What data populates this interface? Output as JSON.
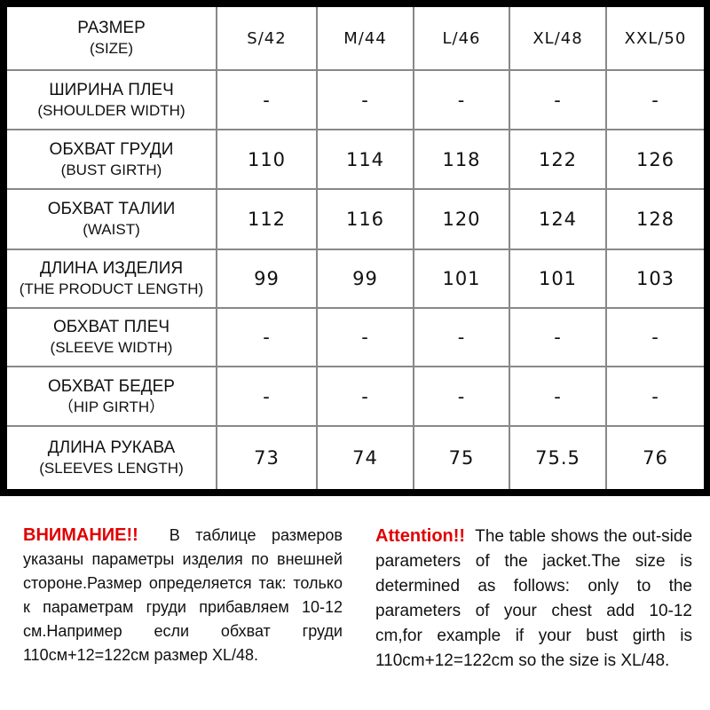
{
  "table": {
    "header": {
      "ru": "РАЗМЕР",
      "en": "(SIZE)",
      "sizes": [
        "S/42",
        "M/44",
        "L/46",
        "XL/48",
        "XXL/50"
      ]
    },
    "rows": [
      {
        "ru": "ШИРИНА ПЛЕЧ",
        "en": "(SHOULDER WIDTH)",
        "values": [
          "-",
          "-",
          "-",
          "-",
          "-"
        ]
      },
      {
        "ru": "ОБХВАТ ГРУДИ",
        "en": "(BUST GIRTH)",
        "values": [
          "110",
          "114",
          "118",
          "122",
          "126"
        ]
      },
      {
        "ru": "ОБХВАТ ТАЛИИ",
        "en": "(WAIST)",
        "values": [
          "112",
          "116",
          "120",
          "124",
          "128"
        ]
      },
      {
        "ru": "ДЛИНА ИЗДЕЛИЯ",
        "en": "(THE PRODUCT LENGTH)",
        "values": [
          "99",
          "99",
          "101",
          "101",
          "103"
        ]
      },
      {
        "ru": "ОБХВАТ ПЛЕЧ",
        "en": "(SLEEVE WIDTH)",
        "values": [
          "-",
          "-",
          "-",
          "-",
          "-"
        ]
      },
      {
        "ru": "ОБХВАТ БЕДЕР",
        "en": "（HIP GIRTH）",
        "values": [
          "-",
          "-",
          "-",
          "-",
          "-"
        ]
      },
      {
        "ru": "ДЛИНА РУКАВА",
        "en": "(SLEEVES LENGTH)",
        "values": [
          "73",
          "74",
          "75",
          "75.5",
          "76"
        ]
      }
    ]
  },
  "notes": {
    "ru": {
      "label": "ВНИМАНИЕ!!",
      "text": "В таблице размеров указаны параметры изделия по внешней стороне.Размер определяется так: только к параметрам груди прибавляем 10-12 см.Например если обхват груди 110см+12=122см размер XL/48."
    },
    "en": {
      "label": "Attention!!",
      "text": "The table shows the out-side parameters of the jacket.The size is determined as follows: only to the parameters of your chest add 10-12 cm,for example if your bust girth is 110cm+12=122cm so the size is XL/48."
    }
  },
  "colors": {
    "accent": "#e00000",
    "border": "#000000",
    "grid": "#888888"
  }
}
